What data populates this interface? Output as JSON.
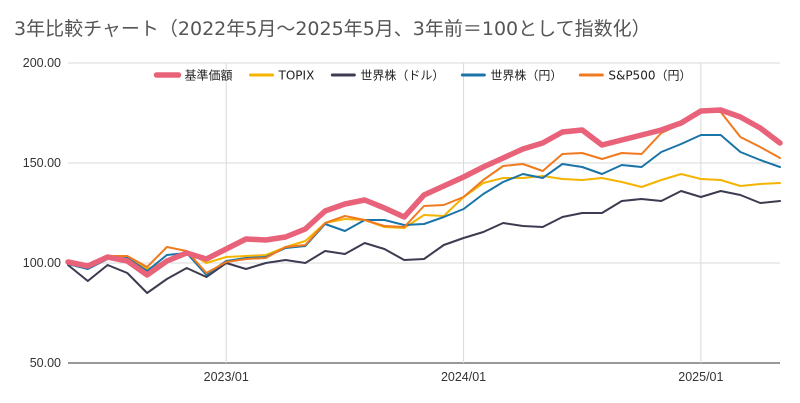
{
  "chart_data": {
    "type": "line",
    "title": "3年比較チャート（2022年5月～2025年5月、3年前＝100として指数化）",
    "xlabel": "",
    "ylabel": "",
    "ylim": [
      50,
      200
    ],
    "yticks": [
      50,
      100,
      150,
      200
    ],
    "ytick_labels": [
      "50.00",
      "100.00",
      "150.00",
      "200.00"
    ],
    "xlim": [
      "2022-05",
      "2025-05"
    ],
    "xticks": [
      "2023-01",
      "2024-01",
      "2025-01"
    ],
    "xtick_labels": [
      "2023/01",
      "2024/01",
      "2025/01"
    ],
    "grid": {
      "horizontal": true,
      "vertical": true
    },
    "legend_position": "top",
    "x": [
      "2022-05",
      "2022-06",
      "2022-07",
      "2022-08",
      "2022-09",
      "2022-10",
      "2022-11",
      "2022-12",
      "2023-01",
      "2023-02",
      "2023-03",
      "2023-04",
      "2023-05",
      "2023-06",
      "2023-07",
      "2023-08",
      "2023-09",
      "2023-10",
      "2023-11",
      "2023-12",
      "2024-01",
      "2024-02",
      "2024-03",
      "2024-04",
      "2024-05",
      "2024-06",
      "2024-07",
      "2024-08",
      "2024-09",
      "2024-10",
      "2024-11",
      "2024-12",
      "2025-01",
      "2025-02",
      "2025-03",
      "2025-04",
      "2025-05"
    ],
    "series": [
      {
        "name": "基準価額",
        "color": "#e8637a",
        "width": 5.5,
        "values": [
          100.5,
          98.5,
          103,
          101,
          94,
          101,
          105,
          102,
          107,
          112,
          111.5,
          113,
          117,
          126,
          129.5,
          131.5,
          127.5,
          123,
          134,
          138.5,
          143,
          148,
          152.5,
          157,
          160,
          165.5,
          166.5,
          159,
          161.5,
          164,
          166.5,
          170,
          176,
          176.5,
          173,
          167.5,
          160
        ]
      },
      {
        "name": "TOPIX",
        "color": "#f4b400",
        "width": 2,
        "values": [
          100,
          98,
          103,
          102.5,
          97,
          101,
          106,
          100,
          103,
          103.5,
          104,
          108,
          111,
          120,
          122,
          121.5,
          118,
          117.5,
          124,
          123.5,
          133,
          140,
          142.5,
          142.5,
          143.5,
          142,
          141.5,
          142.5,
          140.5,
          138,
          141.5,
          144.5,
          142,
          141.5,
          138.5,
          139.5,
          140
        ]
      },
      {
        "name": "世界株（ドル）",
        "color": "#3d3b50",
        "width": 2,
        "values": [
          99,
          91,
          99,
          95,
          85,
          92,
          97.5,
          93,
          100,
          97,
          100,
          101.5,
          100,
          106,
          104.5,
          110,
          107,
          101.5,
          102,
          109,
          112.5,
          115.5,
          120,
          118.5,
          118,
          123,
          125,
          125,
          131,
          132,
          131,
          136,
          133,
          136,
          134,
          130,
          131
        ]
      },
      {
        "name": "世界株（円）",
        "color": "#1b74a8",
        "width": 2,
        "values": [
          99.5,
          97,
          102,
          102.5,
          96,
          104,
          105,
          94,
          101,
          102.5,
          103,
          107.5,
          108.5,
          119.5,
          116,
          121.5,
          121.5,
          119,
          119.5,
          123,
          127,
          134.5,
          140.5,
          144.5,
          142.5,
          149.5,
          148,
          144.5,
          149,
          148,
          155.5,
          159.5,
          164,
          164,
          155.5,
          151.5,
          148
        ]
      },
      {
        "name": "S&P500（円）",
        "color": "#f07a1f",
        "width": 2,
        "values": [
          101,
          98,
          103.5,
          103.5,
          98,
          108,
          106,
          95,
          100.5,
          102,
          102.5,
          108,
          109,
          120,
          123.5,
          121.5,
          118.5,
          118,
          128.5,
          129,
          133,
          141.5,
          148.5,
          149.5,
          146,
          154.5,
          155,
          152,
          155,
          154.5,
          165,
          169.5,
          175.5,
          175.5,
          163,
          158,
          152.5
        ]
      }
    ]
  }
}
